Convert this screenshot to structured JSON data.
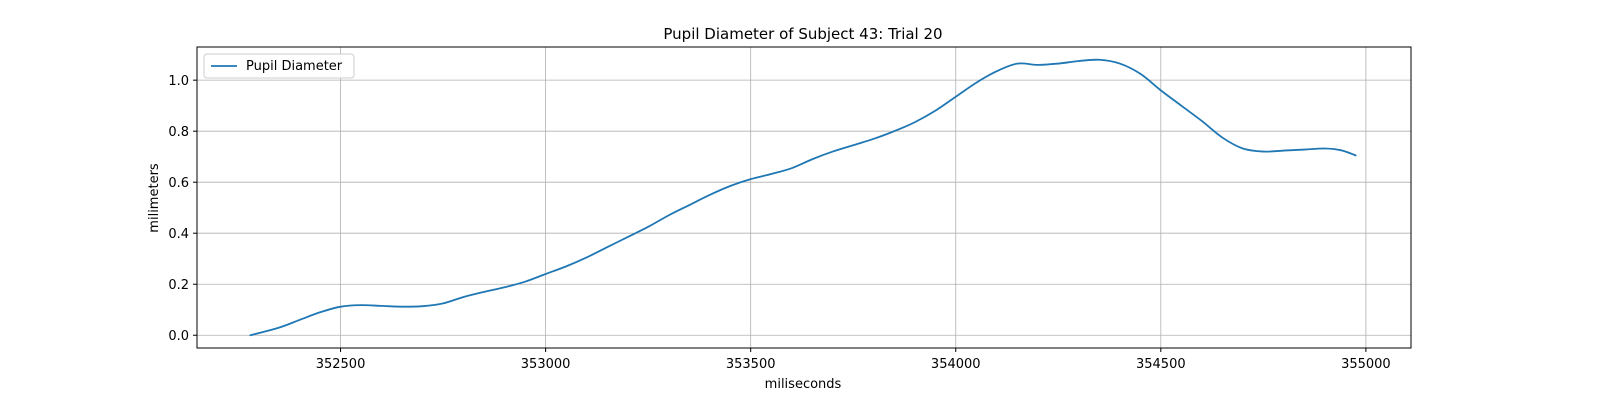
{
  "chart_data": {
    "type": "line",
    "title": "Pupil Diameter of Subject 43: Trial 20",
    "xlabel": "miliseconds",
    "ylabel": "milimeters",
    "xlim": [
      352150,
      355110
    ],
    "ylim": [
      -0.05,
      1.13
    ],
    "xticks": [
      352500,
      353000,
      353500,
      354000,
      354500,
      355000
    ],
    "yticks": [
      0.0,
      0.2,
      0.4,
      0.6,
      0.8,
      1.0
    ],
    "xtick_labels": [
      "352500",
      "353000",
      "353500",
      "354000",
      "354500",
      "355000"
    ],
    "ytick_labels": [
      "0.0",
      "0.2",
      "0.4",
      "0.6",
      "0.8",
      "1.0"
    ],
    "grid": true,
    "legend_position": "top-left",
    "color": "#1f77b4",
    "series": [
      {
        "name": "Pupil Diameter",
        "x": [
          352280,
          352350,
          352400,
          352450,
          352500,
          352550,
          352600,
          352650,
          352700,
          352750,
          352800,
          352850,
          352900,
          352950,
          353000,
          353050,
          353100,
          353150,
          353200,
          353250,
          353300,
          353350,
          353400,
          353450,
          353500,
          353550,
          353600,
          353650,
          353700,
          353750,
          353800,
          353850,
          353900,
          353950,
          354000,
          354050,
          354100,
          354150,
          354200,
          354250,
          354300,
          354350,
          354400,
          354450,
          354500,
          354550,
          354600,
          354650,
          354700,
          354750,
          354800,
          354850,
          354900,
          354940,
          354975
        ],
        "y": [
          0.0,
          0.03,
          0.06,
          0.09,
          0.112,
          0.118,
          0.115,
          0.112,
          0.114,
          0.125,
          0.15,
          0.17,
          0.188,
          0.21,
          0.24,
          0.27,
          0.305,
          0.345,
          0.385,
          0.425,
          0.47,
          0.51,
          0.55,
          0.585,
          0.612,
          0.632,
          0.655,
          0.69,
          0.72,
          0.745,
          0.77,
          0.8,
          0.835,
          0.88,
          0.935,
          0.99,
          1.035,
          1.065,
          1.06,
          1.065,
          1.075,
          1.08,
          1.065,
          1.025,
          0.96,
          0.9,
          0.84,
          0.775,
          0.732,
          0.72,
          0.724,
          0.728,
          0.732,
          0.725,
          0.705
        ]
      }
    ]
  }
}
